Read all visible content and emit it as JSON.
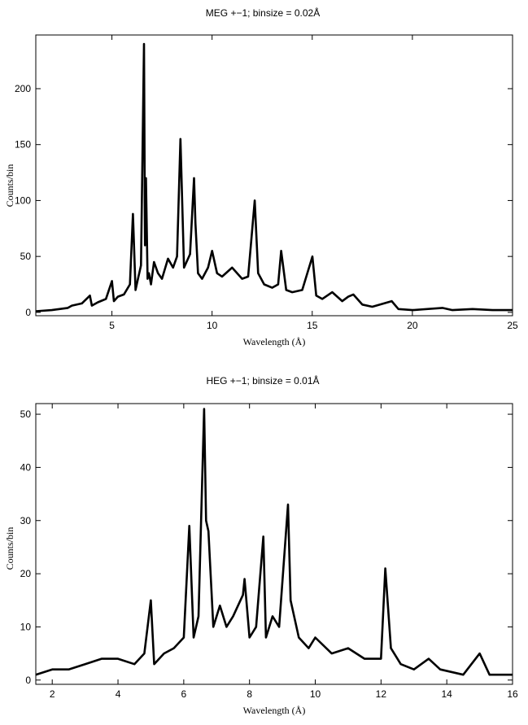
{
  "chart_data": [
    {
      "type": "line",
      "title": "MEG +−1; binsize = 0.02Å",
      "xlabel": "Wavelength (Å)",
      "ylabel": "Counts/bin",
      "xlim": [
        1.2,
        25
      ],
      "ylim": [
        -3,
        248
      ],
      "xticks": [
        5,
        10,
        15,
        20,
        25
      ],
      "xtick_labels": [
        "5",
        "10",
        "15",
        "20",
        "25"
      ],
      "yticks": [
        0,
        50,
        100,
        150,
        200
      ],
      "ytick_labels": [
        "0",
        "50",
        "100",
        "150",
        "200"
      ],
      "grid": false,
      "series": [
        {
          "x": [
            1.2,
            2.0,
            2.8,
            3.0,
            3.5,
            3.9,
            4.0,
            4.3,
            4.7,
            5.0,
            5.1,
            5.3,
            5.6,
            5.9,
            6.05,
            6.18,
            6.3,
            6.45,
            6.6,
            6.65,
            6.7,
            6.78,
            6.85,
            6.95,
            7.1,
            7.3,
            7.5,
            7.8,
            8.05,
            8.25,
            8.42,
            8.6,
            8.9,
            9.1,
            9.17,
            9.3,
            9.5,
            9.8,
            10.0,
            10.25,
            10.5,
            11.0,
            11.5,
            11.8,
            12.13,
            12.3,
            12.6,
            13.0,
            13.3,
            13.45,
            13.7,
            14.0,
            14.5,
            15.01,
            15.2,
            15.5,
            16.0,
            16.5,
            16.8,
            17.05,
            17.5,
            18.0,
            18.97,
            19.3,
            20.0,
            21.5,
            22.0,
            23.0,
            24.0,
            25.0
          ],
          "y": [
            1,
            2,
            4,
            6,
            8,
            15,
            6,
            9,
            12,
            28,
            10,
            14,
            16,
            25,
            88,
            20,
            30,
            42,
            240,
            60,
            120,
            30,
            35,
            25,
            45,
            35,
            30,
            48,
            40,
            50,
            155,
            40,
            52,
            120,
            80,
            35,
            30,
            40,
            55,
            35,
            32,
            40,
            30,
            32,
            100,
            35,
            25,
            22,
            25,
            55,
            20,
            18,
            20,
            50,
            15,
            12,
            18,
            10,
            14,
            16,
            7,
            5,
            10,
            3,
            2,
            4,
            2,
            3,
            2,
            2
          ]
        }
      ]
    },
    {
      "type": "line",
      "title": "HEG +−1; binsize = 0.01Å",
      "xlabel": "Wavelength (Å)",
      "ylabel": "Counts/bin",
      "xlim": [
        1.5,
        16
      ],
      "ylim": [
        -0.8,
        52
      ],
      "xticks": [
        2,
        4,
        6,
        8,
        10,
        12,
        14,
        16
      ],
      "xtick_labels": [
        "2",
        "4",
        "6",
        "8",
        "10",
        "12",
        "14",
        "16"
      ],
      "yticks": [
        0,
        10,
        20,
        30,
        40,
        50
      ],
      "ytick_labels": [
        "0",
        "10",
        "20",
        "30",
        "40",
        "50"
      ],
      "grid": false,
      "series": [
        {
          "x": [
            1.5,
            2.0,
            2.5,
            3.0,
            3.5,
            4.0,
            4.5,
            4.8,
            5.0,
            5.1,
            5.4,
            5.7,
            6.0,
            6.17,
            6.3,
            6.45,
            6.62,
            6.68,
            6.75,
            6.9,
            7.1,
            7.3,
            7.5,
            7.8,
            7.85,
            8.0,
            8.2,
            8.42,
            8.5,
            8.7,
            8.9,
            9.17,
            9.25,
            9.5,
            9.8,
            10.0,
            10.5,
            11.0,
            11.5,
            12.0,
            12.13,
            12.3,
            12.6,
            13.0,
            13.45,
            13.8,
            14.5,
            15.0,
            15.3,
            16.0
          ],
          "y": [
            1,
            2,
            2,
            3,
            4,
            4,
            3,
            5,
            15,
            3,
            5,
            6,
            8,
            29,
            8,
            12,
            51,
            30,
            28,
            10,
            14,
            10,
            12,
            16,
            19,
            8,
            10,
            27,
            8,
            12,
            10,
            33,
            15,
            8,
            6,
            8,
            5,
            6,
            4,
            4,
            21,
            6,
            3,
            2,
            4,
            2,
            1,
            5,
            1,
            1
          ]
        }
      ]
    }
  ]
}
